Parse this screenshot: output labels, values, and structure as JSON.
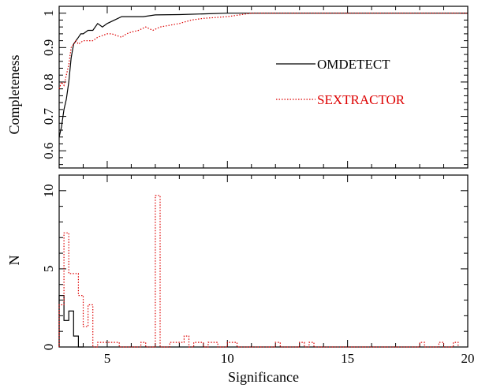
{
  "chart_data": [
    {
      "type": "line",
      "ylabel": "Completeness",
      "xlim": [
        3,
        20
      ],
      "ylim": [
        0.55,
        1.02
      ],
      "xticks": [
        5,
        10,
        15,
        20
      ],
      "yticks": [
        0.6,
        0.7,
        0.8,
        0.9,
        1
      ],
      "ytick_labels": [
        "0.6",
        "0.7",
        "0.8",
        "0.9",
        "1"
      ],
      "legend_position": "right",
      "series": [
        {
          "name": "OMDETECT",
          "color": "#000000",
          "style": "solid",
          "x": [
            3.0,
            3.1,
            3.2,
            3.3,
            3.4,
            3.5,
            3.6,
            3.7,
            3.8,
            3.9,
            4.0,
            4.2,
            4.4,
            4.6,
            4.8,
            5.0,
            5.3,
            5.6,
            6.0,
            6.5,
            7.0,
            8.0,
            9.0,
            10.0,
            11.0,
            12.0,
            15.0,
            20.0
          ],
          "y": [
            0.64,
            0.67,
            0.72,
            0.75,
            0.8,
            0.87,
            0.91,
            0.92,
            0.93,
            0.94,
            0.94,
            0.95,
            0.95,
            0.97,
            0.96,
            0.97,
            0.98,
            0.99,
            0.99,
            0.99,
            0.995,
            0.996,
            0.998,
            1.0,
            1.0,
            1.0,
            1.0,
            1.0
          ]
        },
        {
          "name": "SEXTRACTOR",
          "color": "#dd0000",
          "style": "dotted",
          "x": [
            3.0,
            3.1,
            3.2,
            3.3,
            3.4,
            3.5,
            3.6,
            3.7,
            3.8,
            4.0,
            4.2,
            4.4,
            4.6,
            4.8,
            5.0,
            5.2,
            5.4,
            5.6,
            5.8,
            6.0,
            6.3,
            6.6,
            6.9,
            7.2,
            7.6,
            8.0,
            8.5,
            9.0,
            10.0,
            11.0,
            12.0,
            15.0,
            20.0
          ],
          "y": [
            0.78,
            0.8,
            0.79,
            0.82,
            0.85,
            0.9,
            0.91,
            0.92,
            0.91,
            0.92,
            0.92,
            0.92,
            0.93,
            0.935,
            0.94,
            0.94,
            0.935,
            0.93,
            0.94,
            0.945,
            0.95,
            0.96,
            0.95,
            0.96,
            0.965,
            0.97,
            0.98,
            0.985,
            0.99,
            1.0,
            1.0,
            1.0,
            1.0
          ]
        }
      ]
    },
    {
      "type": "histogram",
      "xlabel": "Significance",
      "ylabel": "N",
      "xlim": [
        3,
        20
      ],
      "ylim": [
        0,
        11
      ],
      "xticks": [
        5,
        10,
        15,
        20
      ],
      "xtick_labels": [
        "5",
        "10",
        "15",
        "20"
      ],
      "yticks": [
        0,
        5,
        10
      ],
      "ytick_labels": [
        "0",
        "5",
        "10"
      ],
      "series": [
        {
          "name": "OMDETECT",
          "color": "#000000",
          "style": "solid",
          "bins": [
            3.0,
            3.2,
            3.4,
            3.6,
            3.8,
            4.0
          ],
          "counts": [
            3.3,
            1.7,
            2.3,
            0.7,
            0
          ]
        },
        {
          "name": "SEXTRACTOR",
          "color": "#dd0000",
          "style": "dotted",
          "bins": [
            3.0,
            3.2,
            3.4,
            3.6,
            3.8,
            4.0,
            4.2,
            4.4,
            4.6,
            4.8,
            5.0,
            5.5,
            6.0,
            6.4,
            6.6,
            6.8,
            7.0,
            7.2,
            7.6,
            7.8,
            8.0,
            8.2,
            8.4,
            8.6,
            9.0,
            9.2,
            9.6,
            10.0,
            10.4,
            10.6,
            12.0,
            12.2,
            13.0,
            13.2,
            13.4,
            13.6,
            18.0,
            18.2,
            18.8,
            19.0,
            19.4,
            19.6
          ],
          "counts": [
            2.7,
            7.3,
            4.7,
            4.7,
            3.3,
            1.3,
            2.7,
            0,
            0.3,
            0.3,
            0.3,
            0,
            0,
            0.3,
            0,
            0,
            9.7,
            0,
            0.3,
            0.3,
            0.3,
            0.7,
            0,
            0.3,
            0,
            0.3,
            0,
            0.3,
            0,
            0,
            0.3,
            0,
            0.3,
            0,
            0.3,
            0,
            0.3,
            0,
            0.3,
            0,
            0.3
          ]
        }
      ]
    }
  ]
}
